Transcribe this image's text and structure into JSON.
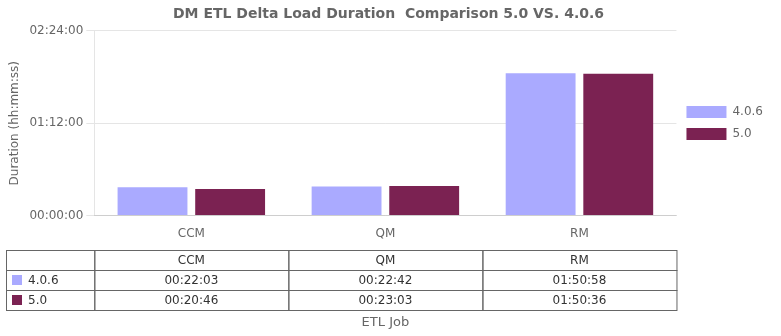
{
  "chart_data": {
    "type": "bar",
    "title": "DM ETL Delta Load Duration  Comparison 5.0 VS. 4.0.6",
    "xlabel": "ETL Job",
    "ylabel": "Duration (hh:mm:ss)",
    "categories": [
      "CCM",
      "QM",
      "RM"
    ],
    "series": [
      {
        "name": "4.0.6",
        "color": "#aaaaff",
        "values": [
          1323,
          1362,
          6658
        ],
        "value_labels": [
          "00:22:03",
          "00:22:42",
          "01:50:58"
        ]
      },
      {
        "name": "5.0",
        "color": "#7b2252",
        "values": [
          1246,
          1383,
          6636
        ],
        "value_labels": [
          "00:20:46",
          "00:23:03",
          "01:50:36"
        ]
      }
    ],
    "ylim": [
      0,
      8640
    ],
    "yticks": [
      {
        "value": 0,
        "label": "00:00:00"
      },
      {
        "value": 4320,
        "label": "01:12:00"
      },
      {
        "value": 8640,
        "label": "02:24:00"
      }
    ],
    "grid": true,
    "legend": "right"
  }
}
